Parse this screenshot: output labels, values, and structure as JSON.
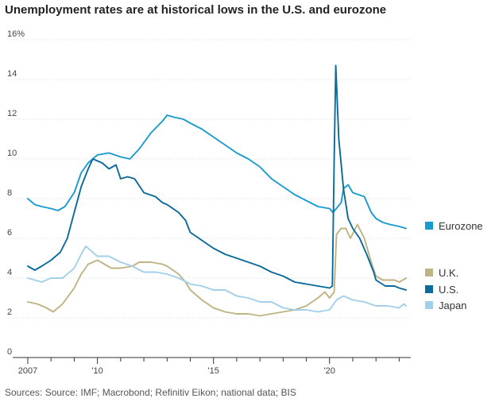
{
  "chart_data": {
    "type": "line",
    "title": "Unemployment rates are at historical lows in the U.S. and eurozone",
    "ylabel": "%",
    "ylim": [
      0,
      16
    ],
    "xlim": [
      2007,
      2023.5
    ],
    "y_ticks": [
      {
        "value": 0,
        "label": "0"
      },
      {
        "value": 2,
        "label": "2"
      },
      {
        "value": 4,
        "label": "4"
      },
      {
        "value": 6,
        "label": "6"
      },
      {
        "value": 8,
        "label": "8"
      },
      {
        "value": 10,
        "label": "10"
      },
      {
        "value": 12,
        "label": "12"
      },
      {
        "value": 14,
        "label": "14"
      },
      {
        "value": 16,
        "label": "16%"
      }
    ],
    "x_ticks": [
      {
        "value": 2007,
        "label": "2007"
      },
      {
        "value": 2010,
        "label": "'10"
      },
      {
        "value": 2015,
        "label": "'15"
      },
      {
        "value": 2020,
        "label": "'20"
      }
    ],
    "source": "Sources: Source: IMF; Macrobond; Refinitiv Eikon; national data; BIS",
    "series": [
      {
        "name": "Eurozone",
        "color": "#1a9bd0",
        "points": [
          [
            2007,
            8.0
          ],
          [
            2007.3,
            7.7
          ],
          [
            2007.6,
            7.6
          ],
          [
            2008,
            7.5
          ],
          [
            2008.3,
            7.4
          ],
          [
            2008.6,
            7.6
          ],
          [
            2009,
            8.3
          ],
          [
            2009.3,
            9.3
          ],
          [
            2009.6,
            9.8
          ],
          [
            2010,
            10.2
          ],
          [
            2010.5,
            10.3
          ],
          [
            2011,
            10.1
          ],
          [
            2011.4,
            10.0
          ],
          [
            2011.8,
            10.5
          ],
          [
            2012.3,
            11.3
          ],
          [
            2012.8,
            11.9
          ],
          [
            2013,
            12.2
          ],
          [
            2013.3,
            12.1
          ],
          [
            2013.7,
            12.0
          ],
          [
            2014,
            11.8
          ],
          [
            2014.5,
            11.5
          ],
          [
            2015,
            11.1
          ],
          [
            2015.5,
            10.7
          ],
          [
            2016,
            10.3
          ],
          [
            2016.5,
            10.0
          ],
          [
            2017,
            9.6
          ],
          [
            2017.5,
            9.0
          ],
          [
            2018,
            8.6
          ],
          [
            2018.5,
            8.2
          ],
          [
            2019,
            7.9
          ],
          [
            2019.5,
            7.6
          ],
          [
            2020,
            7.5
          ],
          [
            2020.15,
            7.3
          ],
          [
            2020.5,
            7.8
          ],
          [
            2020.6,
            8.5
          ],
          [
            2020.8,
            8.7
          ],
          [
            2021,
            8.3
          ],
          [
            2021.5,
            8.1
          ],
          [
            2021.8,
            7.3
          ],
          [
            2022,
            7.0
          ],
          [
            2022.3,
            6.8
          ],
          [
            2022.6,
            6.7
          ],
          [
            2023,
            6.6
          ],
          [
            2023.3,
            6.5
          ]
        ]
      },
      {
        "name": "U.K.",
        "color": "#bfb383",
        "points": [
          [
            2007,
            2.8
          ],
          [
            2007.4,
            2.7
          ],
          [
            2007.8,
            2.5
          ],
          [
            2008.1,
            2.3
          ],
          [
            2008.5,
            2.7
          ],
          [
            2009,
            3.5
          ],
          [
            2009.3,
            4.2
          ],
          [
            2009.6,
            4.7
          ],
          [
            2010,
            4.9
          ],
          [
            2010.3,
            4.7
          ],
          [
            2010.6,
            4.5
          ],
          [
            2011,
            4.5
          ],
          [
            2011.5,
            4.6
          ],
          [
            2011.8,
            4.8
          ],
          [
            2012.3,
            4.8
          ],
          [
            2012.8,
            4.7
          ],
          [
            2013,
            4.6
          ],
          [
            2013.5,
            4.2
          ],
          [
            2013.8,
            3.8
          ],
          [
            2014,
            3.4
          ],
          [
            2014.5,
            2.9
          ],
          [
            2015,
            2.5
          ],
          [
            2015.5,
            2.3
          ],
          [
            2016,
            2.2
          ],
          [
            2016.5,
            2.2
          ],
          [
            2017,
            2.1
          ],
          [
            2017.5,
            2.2
          ],
          [
            2018,
            2.3
          ],
          [
            2018.5,
            2.4
          ],
          [
            2019,
            2.6
          ],
          [
            2019.5,
            3.0
          ],
          [
            2019.8,
            3.3
          ],
          [
            2020,
            3.0
          ],
          [
            2020.2,
            3.3
          ],
          [
            2020.3,
            6.2
          ],
          [
            2020.5,
            6.5
          ],
          [
            2020.7,
            6.5
          ],
          [
            2020.9,
            6.0
          ],
          [
            2021.2,
            6.7
          ],
          [
            2021.5,
            6.0
          ],
          [
            2021.8,
            4.8
          ],
          [
            2022,
            4.1
          ],
          [
            2022.3,
            3.9
          ],
          [
            2022.8,
            3.9
          ],
          [
            2023,
            3.8
          ],
          [
            2023.3,
            4.0
          ]
        ]
      },
      {
        "name": "U.S.",
        "color": "#0a6a9c",
        "points": [
          [
            2007,
            4.6
          ],
          [
            2007.3,
            4.4
          ],
          [
            2007.6,
            4.6
          ],
          [
            2008,
            4.9
          ],
          [
            2008.4,
            5.3
          ],
          [
            2008.7,
            6.0
          ],
          [
            2009,
            7.3
          ],
          [
            2009.3,
            8.6
          ],
          [
            2009.6,
            9.5
          ],
          [
            2009.8,
            10.0
          ],
          [
            2010.2,
            9.8
          ],
          [
            2010.5,
            9.5
          ],
          [
            2010.8,
            9.7
          ],
          [
            2011,
            9.0
          ],
          [
            2011.3,
            9.1
          ],
          [
            2011.6,
            9.0
          ],
          [
            2012,
            8.3
          ],
          [
            2012.5,
            8.1
          ],
          [
            2012.8,
            7.8
          ],
          [
            2013,
            7.7
          ],
          [
            2013.5,
            7.3
          ],
          [
            2013.8,
            6.9
          ],
          [
            2014,
            6.3
          ],
          [
            2014.5,
            5.9
          ],
          [
            2015,
            5.5
          ],
          [
            2015.5,
            5.2
          ],
          [
            2016,
            5.0
          ],
          [
            2016.5,
            4.8
          ],
          [
            2017,
            4.6
          ],
          [
            2017.5,
            4.3
          ],
          [
            2018,
            4.1
          ],
          [
            2018.5,
            3.8
          ],
          [
            2019,
            3.7
          ],
          [
            2019.5,
            3.6
          ],
          [
            2020,
            3.5
          ],
          [
            2020.12,
            3.6
          ],
          [
            2020.2,
            10.0
          ],
          [
            2020.27,
            14.7
          ],
          [
            2020.4,
            11.0
          ],
          [
            2020.6,
            8.5
          ],
          [
            2020.8,
            7.0
          ],
          [
            2021,
            6.5
          ],
          [
            2021.3,
            6.0
          ],
          [
            2021.6,
            5.2
          ],
          [
            2021.9,
            4.3
          ],
          [
            2022,
            3.9
          ],
          [
            2022.4,
            3.6
          ],
          [
            2022.8,
            3.6
          ],
          [
            2023,
            3.5
          ],
          [
            2023.3,
            3.4
          ]
        ]
      },
      {
        "name": "Japan",
        "color": "#a3cfea",
        "points": [
          [
            2007,
            4.0
          ],
          [
            2007.3,
            3.9
          ],
          [
            2007.6,
            3.8
          ],
          [
            2008,
            4.0
          ],
          [
            2008.5,
            4.0
          ],
          [
            2009,
            4.5
          ],
          [
            2009.3,
            5.2
          ],
          [
            2009.5,
            5.6
          ],
          [
            2009.8,
            5.3
          ],
          [
            2010,
            5.1
          ],
          [
            2010.5,
            5.1
          ],
          [
            2011,
            4.8
          ],
          [
            2011.5,
            4.6
          ],
          [
            2012,
            4.3
          ],
          [
            2012.5,
            4.3
          ],
          [
            2013,
            4.2
          ],
          [
            2013.5,
            4.0
          ],
          [
            2014,
            3.7
          ],
          [
            2014.5,
            3.6
          ],
          [
            2015,
            3.4
          ],
          [
            2015.5,
            3.4
          ],
          [
            2016,
            3.1
          ],
          [
            2016.5,
            3.0
          ],
          [
            2017,
            2.8
          ],
          [
            2017.5,
            2.8
          ],
          [
            2018,
            2.5
          ],
          [
            2018.5,
            2.4
          ],
          [
            2019,
            2.4
          ],
          [
            2019.5,
            2.3
          ],
          [
            2020,
            2.4
          ],
          [
            2020.3,
            2.9
          ],
          [
            2020.6,
            3.1
          ],
          [
            2021,
            2.9
          ],
          [
            2021.5,
            2.8
          ],
          [
            2022,
            2.6
          ],
          [
            2022.5,
            2.6
          ],
          [
            2023,
            2.5
          ],
          [
            2023.2,
            2.7
          ],
          [
            2023.3,
            2.6
          ]
        ]
      }
    ]
  }
}
